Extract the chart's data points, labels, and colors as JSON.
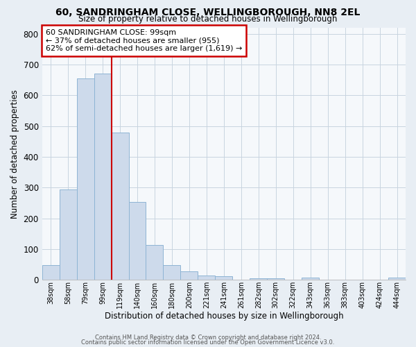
{
  "title": "60, SANDRINGHAM CLOSE, WELLINGBOROUGH, NN8 2EL",
  "subtitle": "Size of property relative to detached houses in Wellingborough",
  "xlabel": "Distribution of detached houses by size in Wellingborough",
  "ylabel": "Number of detached properties",
  "bar_labels": [
    "38sqm",
    "58sqm",
    "79sqm",
    "99sqm",
    "119sqm",
    "140sqm",
    "160sqm",
    "180sqm",
    "200sqm",
    "221sqm",
    "241sqm",
    "261sqm",
    "282sqm",
    "302sqm",
    "322sqm",
    "343sqm",
    "363sqm",
    "383sqm",
    "403sqm",
    "424sqm",
    "444sqm"
  ],
  "bar_heights": [
    47,
    293,
    655,
    670,
    478,
    253,
    113,
    48,
    28,
    14,
    12,
    0,
    4,
    4,
    0,
    7,
    0,
    0,
    0,
    0,
    7
  ],
  "bar_color": "#cddaeb",
  "bar_edge_color": "#8eb4d4",
  "vline_color": "#cc0000",
  "annotation_title": "60 SANDRINGHAM CLOSE: 99sqm",
  "annotation_line1": "← 37% of detached houses are smaller (955)",
  "annotation_line2": "62% of semi-detached houses are larger (1,619) →",
  "annotation_box_color": "#ffffff",
  "annotation_box_edge": "#cc0000",
  "ylim": [
    0,
    820
  ],
  "yticks": [
    0,
    100,
    200,
    300,
    400,
    500,
    600,
    700,
    800
  ],
  "footnote1": "Contains HM Land Registry data © Crown copyright and database right 2024.",
  "footnote2": "Contains public sector information licensed under the Open Government Licence v3.0.",
  "bg_color": "#e8eef4",
  "plot_bg_color": "#f5f8fb",
  "grid_color": "#c8d4e0"
}
